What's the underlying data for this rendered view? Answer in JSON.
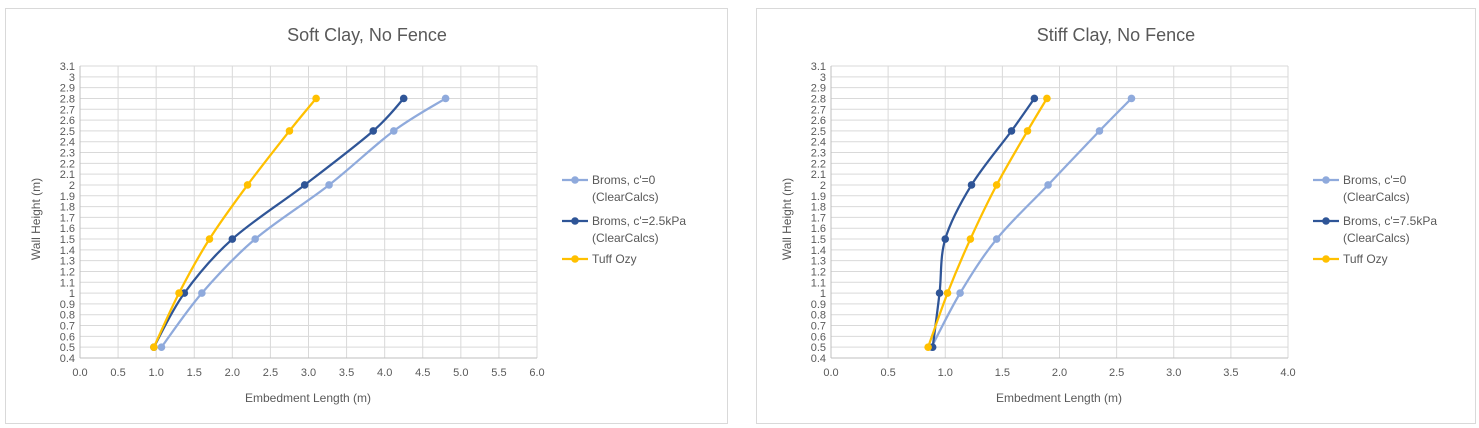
{
  "charts": [
    {
      "title": "Soft Clay, No Fence",
      "xlabel": "Embedment Length (m)",
      "ylabel": "Wall Height (m)"
    },
    {
      "title": "Stiff Clay, No Fence",
      "xlabel": "Embedment Length (m)",
      "ylabel": "Wall Height (m)"
    }
  ],
  "chart_data": [
    {
      "type": "scatter",
      "title": "Soft Clay, No Fence",
      "xlabel": "Embedment Length (m)",
      "ylabel": "Wall Height (m)",
      "xlim": [
        0,
        6
      ],
      "ylim": [
        0.4,
        3.1
      ],
      "xticks": [
        "0.0",
        "0.5",
        "1.0",
        "1.5",
        "2.0",
        "2.5",
        "3.0",
        "3.5",
        "4.0",
        "4.5",
        "5.0",
        "5.5",
        "6.0"
      ],
      "yticks": [
        "0.4",
        "0.5",
        "0.6",
        "0.7",
        "0.8",
        "0.9",
        "1",
        "1.1",
        "1.2",
        "1.3",
        "1.4",
        "1.5",
        "1.6",
        "1.7",
        "1.8",
        "1.9",
        "2",
        "2.1",
        "2.2",
        "2.3",
        "2.4",
        "2.5",
        "2.6",
        "2.7",
        "2.8",
        "2.9",
        "3",
        "3.1"
      ],
      "grid": true,
      "legend_position": "right",
      "series": [
        {
          "name": "Broms, c'=0",
          "name2": "(ClearCalcs)",
          "color": "#8faadc",
          "x": [
            1.07,
            1.6,
            2.3,
            3.27,
            4.12,
            4.8
          ],
          "y": [
            0.5,
            1.0,
            1.5,
            2.0,
            2.5,
            2.8
          ]
        },
        {
          "name": "Broms, c'=2.5kPa",
          "name2": "(ClearCalcs)",
          "color": "#2f5597",
          "x": [
            0.97,
            1.37,
            2.0,
            2.95,
            3.85,
            4.25
          ],
          "y": [
            0.5,
            1.0,
            1.5,
            2.0,
            2.5,
            2.8
          ]
        },
        {
          "name": "Tuff Ozy",
          "name2": "",
          "color": "#ffc000",
          "x": [
            0.97,
            1.3,
            1.7,
            2.2,
            2.75,
            3.1
          ],
          "y": [
            0.5,
            1.0,
            1.5,
            2.0,
            2.5,
            2.8
          ]
        }
      ]
    },
    {
      "type": "scatter",
      "title": "Stiff Clay, No Fence",
      "xlabel": "Embedment Length (m)",
      "ylabel": "Wall Height (m)",
      "xlim": [
        0,
        4
      ],
      "ylim": [
        0.4,
        3.1
      ],
      "xticks": [
        "0.0",
        "0.5",
        "1.0",
        "1.5",
        "2.0",
        "2.5",
        "3.0",
        "3.5",
        "4.0"
      ],
      "yticks": [
        "0.4",
        "0.5",
        "0.6",
        "0.7",
        "0.8",
        "0.9",
        "1",
        "1.1",
        "1.2",
        "1.3",
        "1.4",
        "1.5",
        "1.6",
        "1.7",
        "1.8",
        "1.9",
        "2",
        "2.1",
        "2.2",
        "2.3",
        "2.4",
        "2.5",
        "2.6",
        "2.7",
        "2.8",
        "2.9",
        "3",
        "3.1"
      ],
      "grid": true,
      "legend_position": "right",
      "series": [
        {
          "name": "Broms, c'=0",
          "name2": "(ClearCalcs)",
          "color": "#8faadc",
          "x": [
            0.88,
            1.13,
            1.45,
            1.9,
            2.35,
            2.63
          ],
          "y": [
            0.5,
            1.0,
            1.5,
            2.0,
            2.5,
            2.8
          ]
        },
        {
          "name": "Broms,  c'=7.5kPa",
          "name2": "(ClearCalcs)",
          "color": "#2f5597",
          "x": [
            0.89,
            0.95,
            1.0,
            1.23,
            1.58,
            1.78
          ],
          "y": [
            0.5,
            1.0,
            1.5,
            2.0,
            2.5,
            2.8
          ]
        },
        {
          "name": "Tuff Ozy",
          "name2": "",
          "color": "#ffc000",
          "x": [
            0.85,
            1.02,
            1.22,
            1.45,
            1.72,
            1.89
          ],
          "y": [
            0.5,
            1.0,
            1.5,
            2.0,
            2.5,
            2.8
          ]
        }
      ]
    }
  ]
}
